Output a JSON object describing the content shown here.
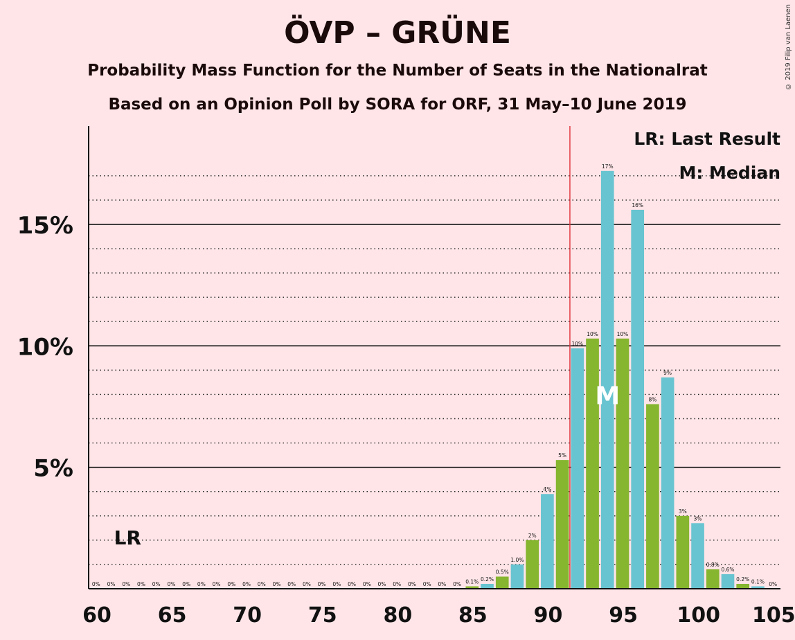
{
  "chart_data": {
    "type": "bar",
    "title": "ÖVP – GRÜNE",
    "subtitle": "Probability Mass Function for the Number of Seats in the Nationalrat",
    "subtitle2": "Based on an Opinion Poll by SORA for ORF, 31 May–10 June 2019",
    "copyright": "© 2019 Filip van Laenen",
    "x": [
      60,
      61,
      62,
      63,
      64,
      65,
      66,
      67,
      68,
      69,
      70,
      71,
      72,
      73,
      74,
      75,
      76,
      77,
      78,
      79,
      80,
      81,
      82,
      83,
      84,
      85,
      86,
      87,
      88,
      89,
      90,
      91,
      92,
      93,
      94,
      95,
      96,
      97,
      98,
      99,
      100,
      101,
      102,
      103,
      104,
      105
    ],
    "values": [
      0,
      0,
      0,
      0,
      0,
      0,
      0,
      0,
      0,
      0,
      0,
      0,
      0,
      0,
      0,
      0,
      0,
      0,
      0,
      0,
      0,
      0,
      0,
      0,
      0,
      0.1,
      0.2,
      0.5,
      1.0,
      2.0,
      3.9,
      5.3,
      9.9,
      10.3,
      17.2,
      10.3,
      15.6,
      7.6,
      8.7,
      3.0,
      2.7,
      0.8,
      0.6,
      0.2,
      0.1,
      0
    ],
    "labels": [
      "0%",
      "0%",
      "0%",
      "0%",
      "0%",
      "0%",
      "0%",
      "0%",
      "0%",
      "0%",
      "0%",
      "0%",
      "0%",
      "0%",
      "0%",
      "0%",
      "0%",
      "0%",
      "0%",
      "0%",
      "0%",
      "0%",
      "0%",
      "0%",
      "0%",
      "0.1%",
      "0.2%",
      "0.5%",
      "1.0%",
      "2%",
      "4%",
      "5%",
      "10%",
      "10%",
      "17%",
      "10%",
      "16%",
      "8%",
      "9%",
      "3%",
      "3%",
      "0.8%",
      "0.6%",
      "0.2%",
      "0.1%",
      "0%"
    ],
    "colors": {
      "teal": "#68C4D0",
      "green": "#86B52F",
      "majority_line": "#E0303A",
      "background": "#FFE5E8"
    },
    "majority_threshold": 91.5,
    "last_result_x": 62,
    "last_result_label": "LR",
    "median_x": 94,
    "median_label": "M",
    "xticks": [
      60,
      65,
      70,
      75,
      80,
      85,
      90,
      95,
      100,
      105
    ],
    "yticks": [
      5,
      10,
      15
    ],
    "ytick_labels": [
      "5%",
      "10%",
      "15%"
    ],
    "ylim": [
      0,
      18
    ],
    "legend": [
      "LR: Last Result",
      "M: Median"
    ],
    "legend_position": "top-right"
  }
}
